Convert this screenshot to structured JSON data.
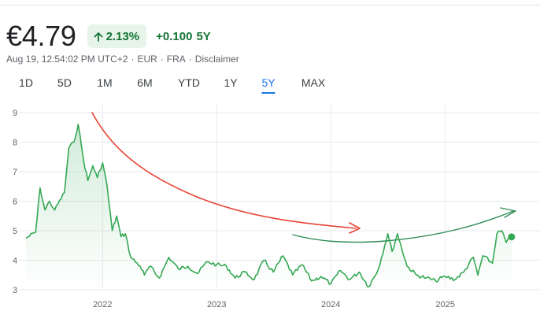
{
  "quote": {
    "price": "€4.79",
    "change_pct": "2.13%",
    "change_abs": "+0.100",
    "change_period": "5Y",
    "timestamp": "Aug 19, 12:54:02 PM UTC+2",
    "currency": "EUR",
    "exchange": "FRA",
    "disclaimer": "Disclaimer",
    "separator": "·"
  },
  "ranges": [
    {
      "label": "1D",
      "active": false
    },
    {
      "label": "5D",
      "active": false
    },
    {
      "label": "1M",
      "active": false
    },
    {
      "label": "6M",
      "active": false
    },
    {
      "label": "YTD",
      "active": false
    },
    {
      "label": "1Y",
      "active": false
    },
    {
      "label": "5Y",
      "active": true
    },
    {
      "label": "MAX",
      "active": false
    }
  ],
  "colors": {
    "series": "#34a853",
    "positive": "#137333",
    "badge_bg": "#e6f4ea",
    "accent": "#1a73e8",
    "annotation_red": "#ea4335",
    "annotation_green": "#2e8b57",
    "grid": "#e8eaed"
  },
  "chart_data": {
    "type": "area",
    "title": "",
    "xlabel": "",
    "ylabel": "",
    "ylim": [
      3,
      9
    ],
    "yticks": [
      "3",
      "4",
      "5",
      "6",
      "7",
      "8",
      "9"
    ],
    "xticks": [
      "2022",
      "2023",
      "2024",
      "2025"
    ],
    "grid": true,
    "series": [
      {
        "x": [
          "2021-05",
          "2021-06",
          "2021-06",
          "2021-07",
          "2021-07",
          "2021-08",
          "2021-09",
          "2021-09",
          "2021-10",
          "2021-10",
          "2021-11",
          "2021-11",
          "2021-12",
          "2021-12",
          "2022-01",
          "2022-01",
          "2022-02",
          "2022-02",
          "2022-03",
          "2022-03",
          "2022-04",
          "2022-05",
          "2022-05",
          "2022-06",
          "2022-07",
          "2022-08",
          "2022-09",
          "2022-10",
          "2022-11",
          "2022-12",
          "2023-01",
          "2023-02",
          "2023-03",
          "2023-04",
          "2023-05",
          "2023-06",
          "2023-07",
          "2023-08",
          "2023-09",
          "2023-10",
          "2023-11",
          "2023-12",
          "2024-01",
          "2024-02",
          "2024-03",
          "2024-04",
          "2024-05",
          "2024-06",
          "2024-07",
          "2024-07",
          "2024-08",
          "2024-09",
          "2024-10",
          "2024-11",
          "2024-12",
          "2025-01",
          "2025-02",
          "2025-03",
          "2025-04",
          "2025-04",
          "2025-05",
          "2025-06",
          "2025-06",
          "2025-07",
          "2025-07",
          "2025-08"
        ],
        "values": [
          4.75,
          4.95,
          6.45,
          5.7,
          6.0,
          5.7,
          6.3,
          7.8,
          8.0,
          8.6,
          7.4,
          6.7,
          7.2,
          6.8,
          7.3,
          6.55,
          5.0,
          5.5,
          4.8,
          4.9,
          4.1,
          3.8,
          3.5,
          3.8,
          3.4,
          4.1,
          3.7,
          3.8,
          3.55,
          3.95,
          3.85,
          3.8,
          3.4,
          3.6,
          3.35,
          4.0,
          3.6,
          4.15,
          3.5,
          3.85,
          3.3,
          3.45,
          3.2,
          3.65,
          3.35,
          3.6,
          3.1,
          3.7,
          4.9,
          4.3,
          4.9,
          3.8,
          3.5,
          3.4,
          3.3,
          3.45,
          3.35,
          3.6,
          4.1,
          3.5,
          4.15,
          3.9,
          4.9,
          5.0,
          4.6,
          4.79
        ]
      }
    ],
    "current_value": 4.79,
    "annotations": [
      {
        "kind": "hand-drawn-arrow",
        "color": "red"
      },
      {
        "kind": "hand-drawn-arrow",
        "color": "green"
      }
    ]
  }
}
